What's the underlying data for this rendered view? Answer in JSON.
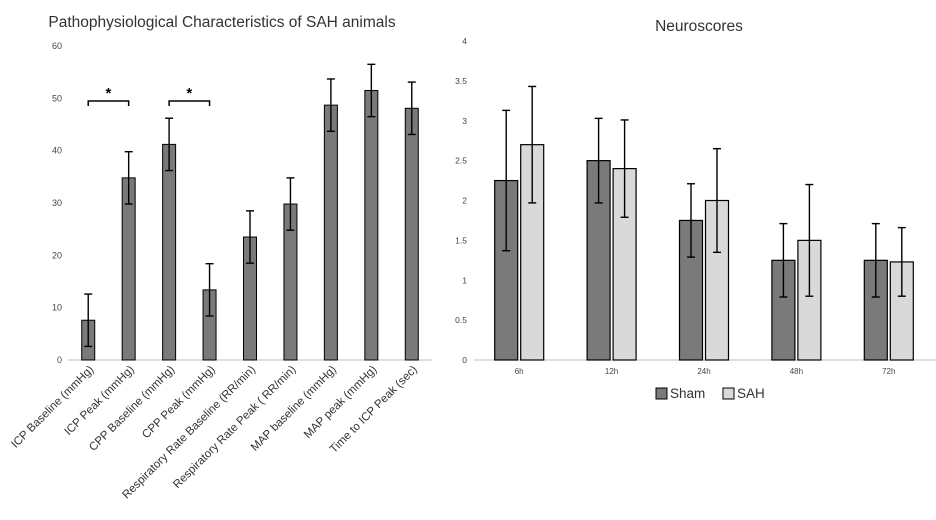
{
  "chart_data": [
    {
      "id": "left",
      "type": "bar",
      "title": "Pathophysiological Characteristics of SAH animals",
      "xlabel": "",
      "ylabel": "",
      "ylim": [
        0,
        60
      ],
      "yticks": [
        "0",
        "10",
        "20",
        "30",
        "40",
        "50",
        "60"
      ],
      "grid": false,
      "bar_color": "#7a7a7a",
      "categories": [
        "ICP Baseline (mmHg)",
        "ICP Peak (mmHg)",
        "CPP Baseline (mmHg)",
        "CPP Peak (mmHg)",
        "Respiratory Rate Baseline  (RR/min)",
        "Respiratory Rate Peak ( RR/min)",
        "MAP baseline (mmHg)",
        "MAP peak (mmHg)",
        "Time to ICP Peak (sec)"
      ],
      "values": [
        7.6,
        34.8,
        41.2,
        13.4,
        23.5,
        29.8,
        48.7,
        51.5,
        48.1
      ],
      "errors": [
        5.0,
        5.0,
        5.0,
        5.0,
        5.0,
        5.0,
        5.0,
        5.0,
        5.0
      ],
      "annotations": [
        {
          "from": 0,
          "to": 1,
          "label": "*"
        },
        {
          "from": 2,
          "to": 3,
          "label": "*"
        }
      ]
    },
    {
      "id": "right",
      "type": "bar",
      "title": "Neuroscores",
      "xlabel": "",
      "ylabel": "",
      "ylim": [
        0,
        4
      ],
      "yticks": [
        "0",
        "0.5",
        "1",
        "1.5",
        "2",
        "2.5",
        "3",
        "3.5",
        "4"
      ],
      "grid": false,
      "legend_position": "bottom",
      "categories": [
        "6h",
        "12h",
        "24h",
        "48h",
        "72h"
      ],
      "series": [
        {
          "name": "Sham",
          "color": "#7a7a7a",
          "values": [
            2.25,
            2.5,
            1.75,
            1.25,
            1.25
          ],
          "errors": [
            0.88,
            0.53,
            0.46,
            0.46,
            0.46
          ]
        },
        {
          "name": "SAH",
          "color": "#d9d9d9",
          "values": [
            2.7,
            2.4,
            2.0,
            1.5,
            1.23
          ],
          "errors": [
            0.73,
            0.61,
            0.65,
            0.7,
            0.43
          ]
        }
      ]
    }
  ]
}
